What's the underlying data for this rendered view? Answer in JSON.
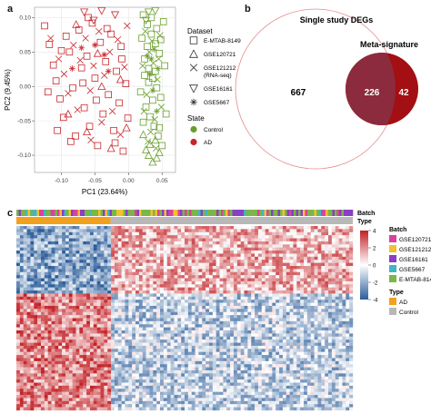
{
  "panels": {
    "a_label": "a",
    "b_label": "b",
    "c_label": "c"
  },
  "colors": {
    "control": "#6a9e2b",
    "ad": "#c8262b",
    "venn_big_stroke": "#e58a8a",
    "venn_mid": "#8c2b3d",
    "venn_right": "#a30f12",
    "heat_red": "#c22024",
    "heat_blue": "#2a5d9a",
    "batch_gse120721": "#d9439b",
    "batch_gse121212": "#f2c12e",
    "batch_gse16161": "#8a3fc4",
    "batch_gse5667": "#41b6c4",
    "batch_emtab8149": "#7ab648",
    "type_ad": "#f2a11f",
    "type_control": "#b8b8b8"
  },
  "chart_data": [
    {
      "type": "scatter",
      "xlabel": "PC1 (23.64%)",
      "ylabel": "PC2 (9.45%)",
      "xlim": [
        -0.14,
        0.07
      ],
      "ylim": [
        -0.125,
        0.115
      ],
      "xticks": [
        "-0.10",
        "-0.05",
        "0.00",
        "0.05"
      ],
      "xtick_values": [
        -0.1,
        -0.05,
        0.0,
        0.05
      ],
      "yticks": [
        "0.10",
        "0.05",
        "0.00",
        "-0.05",
        "-0.10"
      ],
      "ytick_values": [
        0.1,
        0.05,
        0.0,
        -0.05,
        -0.1
      ],
      "grid": true,
      "legend_dataset_title": "Dataset",
      "legend_dataset": [
        {
          "label": "E-MTAB-8149",
          "shape": "square"
        },
        {
          "label": "GSE120721",
          "shape": "triangle"
        },
        {
          "label": "GSE121212",
          "label2": "(RNA-seq)",
          "shape": "cross"
        },
        {
          "label": "GSE16161",
          "shape": "triangle-down"
        },
        {
          "label": "GSE5667",
          "shape": "asterisk"
        }
      ],
      "legend_state_title": "State",
      "legend_state": [
        {
          "label": "Control"
        },
        {
          "label": "AD"
        }
      ],
      "series": [
        {
          "name": "AD",
          "points": [
            [
              -0.125,
              0.088,
              "square"
            ],
            [
              -0.118,
              0.061,
              "square"
            ],
            [
              -0.112,
              0.031,
              "square"
            ],
            [
              -0.108,
              0.008,
              "square"
            ],
            [
              -0.102,
              -0.018,
              "square"
            ],
            [
              -0.097,
              -0.045,
              "square"
            ],
            [
              -0.093,
              0.073,
              "square"
            ],
            [
              -0.088,
              0.05,
              "square"
            ],
            [
              -0.083,
              -0.002,
              "square"
            ],
            [
              -0.079,
              -0.072,
              "square"
            ],
            [
              -0.074,
              0.082,
              "square"
            ],
            [
              -0.07,
              0.027,
              "square"
            ],
            [
              -0.066,
              -0.031,
              "square"
            ],
            [
              -0.062,
              0.044,
              "square"
            ],
            [
              -0.058,
              -0.058,
              "square"
            ],
            [
              -0.054,
              0.092,
              "square"
            ],
            [
              -0.05,
              0.012,
              "square"
            ],
            [
              -0.046,
              -0.086,
              "square"
            ],
            [
              -0.042,
              0.064,
              "square"
            ],
            [
              -0.038,
              -0.04,
              "square"
            ],
            [
              -0.034,
              0.036,
              "square"
            ],
            [
              -0.03,
              -0.012,
              "square"
            ],
            [
              -0.026,
              0.076,
              "square"
            ],
            [
              -0.022,
              -0.064,
              "square"
            ],
            [
              -0.018,
              0.022,
              "square"
            ],
            [
              -0.014,
              -0.024,
              "square"
            ],
            [
              -0.011,
              0.058,
              "square"
            ],
            [
              -0.008,
              -0.094,
              "square"
            ],
            [
              -0.004,
              0.004,
              "square"
            ],
            [
              -0.001,
              -0.046,
              "square"
            ],
            [
              -0.12,
              -0.008,
              "square"
            ],
            [
              -0.106,
              -0.064,
              "square"
            ],
            [
              -0.1,
              0.052,
              "square"
            ],
            [
              -0.086,
              -0.08,
              "square"
            ],
            [
              -0.068,
              0.005,
              "square"
            ],
            [
              -0.06,
              0.1,
              "square"
            ],
            [
              -0.048,
              -0.02,
              "square"
            ],
            [
              -0.032,
              0.084,
              "square"
            ],
            [
              -0.02,
              -0.082,
              "square"
            ],
            [
              -0.01,
              0.04,
              "square"
            ],
            [
              -0.116,
              0.07,
              "cross"
            ],
            [
              -0.104,
              0.04,
              "cross"
            ],
            [
              -0.096,
              0.018,
              "cross"
            ],
            [
              -0.09,
              -0.01,
              "cross"
            ],
            [
              -0.082,
              0.06,
              "cross"
            ],
            [
              -0.076,
              -0.034,
              "cross"
            ],
            [
              -0.072,
              0.038,
              "cross"
            ],
            [
              -0.064,
              0.07,
              "cross"
            ],
            [
              -0.057,
              -0.006,
              "cross"
            ],
            [
              -0.052,
              0.03,
              "cross"
            ],
            [
              -0.044,
              0.08,
              "cross"
            ],
            [
              -0.04,
              -0.052,
              "cross"
            ],
            [
              -0.036,
              0.016,
              "cross"
            ],
            [
              -0.028,
              0.05,
              "cross"
            ],
            [
              -0.024,
              -0.036,
              "cross"
            ],
            [
              -0.016,
              0.068,
              "cross"
            ],
            [
              -0.012,
              -0.07,
              "cross"
            ],
            [
              -0.006,
              0.028,
              "cross"
            ],
            [
              -0.002,
              0.088,
              "cross"
            ],
            [
              -0.056,
              -0.078,
              "cross"
            ],
            [
              -0.078,
              0.09,
              "triangle"
            ],
            [
              -0.062,
              -0.066,
              "triangle"
            ],
            [
              -0.04,
              0.0,
              "triangle"
            ],
            [
              -0.026,
              -0.09,
              "triangle"
            ],
            [
              -0.012,
              0.01,
              "triangle"
            ],
            [
              -0.003,
              -0.06,
              "triangle"
            ],
            [
              -0.046,
              0.048,
              "triangle"
            ],
            [
              -0.09,
              -0.04,
              "triangle"
            ],
            [
              -0.066,
              0.108,
              "triangle-down"
            ],
            [
              -0.04,
              0.11,
              "triangle-down"
            ],
            [
              -0.02,
              0.104,
              "triangle-down"
            ],
            [
              -0.052,
              0.096,
              "triangle-down"
            ],
            [
              -0.07,
              0.056,
              "asterisk"
            ],
            [
              -0.05,
              0.06,
              "asterisk"
            ],
            [
              -0.036,
              0.046,
              "asterisk"
            ],
            [
              -0.084,
              0.026,
              "asterisk"
            ],
            [
              -0.03,
              0.022,
              "asterisk"
            ]
          ]
        },
        {
          "name": "Control",
          "points": [
            [
              0.022,
              0.104,
              "square"
            ],
            [
              0.028,
              0.09,
              "square"
            ],
            [
              0.034,
              0.076,
              "square"
            ],
            [
              0.04,
              0.062,
              "square"
            ],
            [
              0.046,
              0.048,
              "square"
            ],
            [
              0.024,
              0.04,
              "square"
            ],
            [
              0.03,
              0.026,
              "square"
            ],
            [
              0.036,
              0.012,
              "square"
            ],
            [
              0.042,
              -0.002,
              "square"
            ],
            [
              0.048,
              -0.016,
              "square"
            ],
            [
              0.026,
              -0.03,
              "square"
            ],
            [
              0.032,
              -0.044,
              "square"
            ],
            [
              0.038,
              -0.058,
              "square"
            ],
            [
              0.044,
              -0.072,
              "square"
            ],
            [
              0.05,
              -0.086,
              "square"
            ],
            [
              0.02,
              0.07,
              "square"
            ],
            [
              0.052,
              0.094,
              "square"
            ],
            [
              0.054,
              0.03,
              "square"
            ],
            [
              0.056,
              -0.04,
              "square"
            ],
            [
              0.018,
              -0.008,
              "square"
            ],
            [
              0.028,
              0.058,
              "square"
            ],
            [
              0.034,
              0.1,
              "square"
            ],
            [
              0.04,
              0.022,
              "square"
            ],
            [
              0.046,
              -0.06,
              "square"
            ],
            [
              0.022,
              -0.052,
              "square"
            ],
            [
              0.03,
              0.006,
              "square"
            ],
            [
              0.036,
              -0.02,
              "square"
            ],
            [
              0.042,
              0.084,
              "square"
            ],
            [
              0.048,
              0.068,
              "square"
            ],
            [
              0.024,
              0.016,
              "square"
            ],
            [
              0.025,
              0.08,
              "cross"
            ],
            [
              0.031,
              0.05,
              "cross"
            ],
            [
              0.037,
              0.034,
              "cross"
            ],
            [
              0.043,
              0.01,
              "cross"
            ],
            [
              0.049,
              -0.03,
              "cross"
            ],
            [
              0.027,
              -0.012,
              "cross"
            ],
            [
              0.033,
              -0.066,
              "cross"
            ],
            [
              0.039,
              -0.048,
              "cross"
            ],
            [
              0.045,
              0.04,
              "cross"
            ],
            [
              0.021,
              0.03,
              "cross"
            ],
            [
              0.035,
              0.066,
              "cross"
            ],
            [
              0.041,
              -0.09,
              "cross"
            ],
            [
              0.029,
              -0.08,
              "cross"
            ],
            [
              0.047,
              0.074,
              "cross"
            ],
            [
              0.023,
              -0.036,
              "cross"
            ],
            [
              0.03,
              -0.1,
              "triangle"
            ],
            [
              0.036,
              -0.11,
              "triangle"
            ],
            [
              0.042,
              -0.104,
              "triangle"
            ],
            [
              0.026,
              -0.092,
              "triangle"
            ],
            [
              0.046,
              -0.096,
              "triangle"
            ],
            [
              0.032,
              -0.084,
              "triangle"
            ],
            [
              0.04,
              -0.078,
              "triangle"
            ],
            [
              0.022,
              -0.07,
              "triangle"
            ],
            [
              0.03,
              0.108,
              "triangle-down"
            ],
            [
              0.04,
              0.11,
              "triangle-down"
            ],
            [
              0.026,
              0.096,
              "triangle-down"
            ],
            [
              0.034,
              0.04,
              "asterisk"
            ],
            [
              0.038,
              0.054,
              "asterisk"
            ],
            [
              0.044,
              0.026,
              "asterisk"
            ],
            [
              0.028,
              0.044,
              "asterisk"
            ],
            [
              0.036,
              -0.006,
              "asterisk"
            ],
            [
              0.042,
              -0.036,
              "asterisk"
            ],
            [
              0.032,
              0.018,
              "asterisk"
            ]
          ]
        }
      ]
    },
    {
      "type": "venn",
      "sets": [
        {
          "name": "Single study DEGs"
        },
        {
          "name": "Meta-signature"
        }
      ],
      "regions": {
        "single_only": 667,
        "both": 226,
        "meta_only": 42
      }
    },
    {
      "type": "heatmap",
      "legend_scale_values": [
        4,
        2,
        0,
        -2,
        -4
      ],
      "legend_scale_labels": [
        "4",
        "2",
        "0",
        "-2",
        "-4"
      ],
      "top_track_labels": [
        "Batch",
        "Type"
      ],
      "legend_batch_title": "Batch",
      "legend_batch": [
        {
          "label": "GSE120721"
        },
        {
          "label": "GSE121212"
        },
        {
          "label": "GSE16161"
        },
        {
          "label": "GSE5667"
        },
        {
          "label": "E-MTAB-8149"
        }
      ],
      "legend_type_title": "Type",
      "legend_type": [
        {
          "label": "AD"
        },
        {
          "label": "Control"
        }
      ],
      "type_split_fraction": 0.28
    }
  ]
}
